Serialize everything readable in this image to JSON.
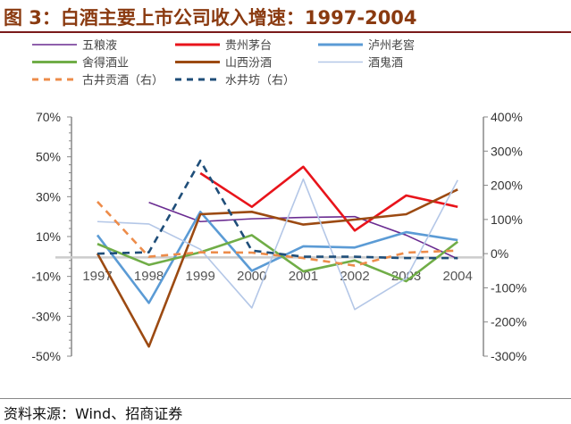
{
  "title": "图 3：白酒主要上市公司收入增速：1997-2004",
  "source": "资料来源：Wind、招商证券",
  "chart_data": {
    "type": "line",
    "title": "图 3：白酒主要上市公司收入增速：1997-2004",
    "categories": [
      "1997",
      "1998",
      "1999",
      "2000",
      "2001",
      "2002",
      "2003",
      "2004"
    ],
    "left_axis": {
      "range": [
        -50,
        70
      ],
      "ticks": [
        "70%",
        "50%",
        "30%",
        "10%",
        "-10%",
        "-30%",
        "-50%"
      ],
      "tick_values": [
        70,
        50,
        30,
        10,
        -10,
        -30,
        -50
      ]
    },
    "right_axis": {
      "range": [
        -300,
        400
      ],
      "ticks": [
        "400%",
        "300%",
        "200%",
        "100%",
        "0%",
        "-100%",
        "-200%",
        "-300%"
      ],
      "tick_values": [
        400,
        300,
        200,
        100,
        0,
        -100,
        -200,
        -300
      ]
    },
    "legend_placement": "top",
    "grid": false,
    "series": [
      {
        "name": "五粮液",
        "color": "#6a2c91",
        "axis": "left",
        "dash": false,
        "values": [
          null,
          27.1,
          17.5,
          18.9,
          19.6,
          20,
          10.7,
          -1.2
        ]
      },
      {
        "name": "贵州茅台",
        "color": "#e8141b",
        "axis": "left",
        "dash": false,
        "values": [
          null,
          null,
          41.8,
          24.9,
          45,
          13,
          30.6,
          24.9
        ]
      },
      {
        "name": "泸州老窖",
        "color": "#5b9bd5",
        "axis": "left",
        "dash": false,
        "values": [
          10.7,
          -23.3,
          22.4,
          -7.2,
          5.1,
          4.5,
          12.2,
          8.2
        ]
      },
      {
        "name": "舍得酒业",
        "color": "#70ad47",
        "axis": "left",
        "dash": false,
        "values": [
          6.3,
          -4.2,
          2.1,
          10.7,
          -7.5,
          -2,
          -12.4,
          7.4
        ]
      },
      {
        "name": "山西汾酒",
        "color": "#9c4a12",
        "axis": "left",
        "dash": false,
        "values": [
          1.5,
          -45.2,
          21.2,
          22.4,
          16,
          18.5,
          21.2,
          33.6
        ]
      },
      {
        "name": "酒鬼酒",
        "color": "#b4c7e7",
        "axis": "left",
        "dash": false,
        "values": [
          17.5,
          16.3,
          3.6,
          -25.8,
          38.8,
          -26.6,
          -10.9,
          38.3
        ]
      },
      {
        "name": "古井贡酒（右）",
        "color": "#ed8c4a",
        "axis": "right",
        "dash": true,
        "values": [
          152,
          -9,
          4,
          3,
          -13,
          -35,
          3,
          9
        ]
      },
      {
        "name": "水井坊（右）",
        "color": "#1f4e79",
        "axis": "right",
        "dash": true,
        "values": [
          0,
          4,
          272,
          9,
          -9,
          -9,
          -13,
          -13
        ]
      }
    ]
  }
}
